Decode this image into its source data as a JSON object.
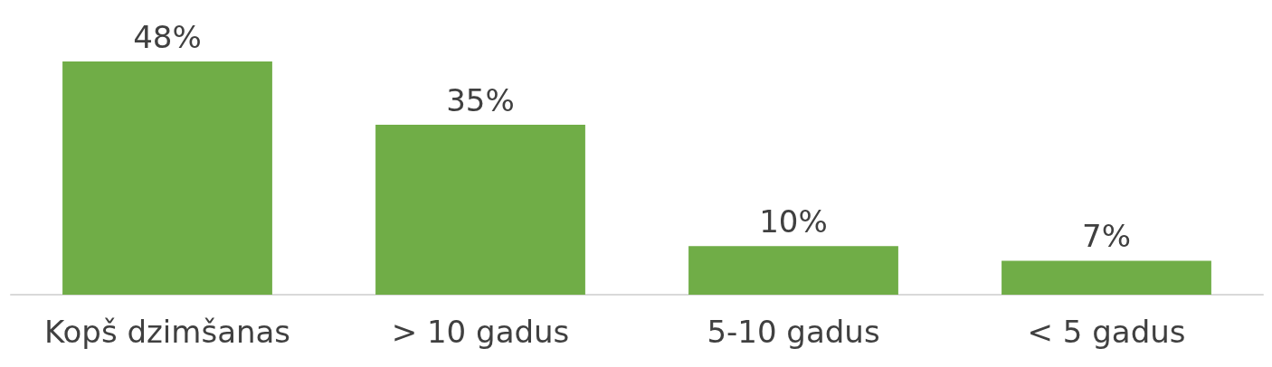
{
  "chart_data": {
    "type": "bar",
    "categories": [
      "Kopš dzimšanas",
      "> 10 gadus",
      "5-10 gadus",
      "< 5 gadus"
    ],
    "values": [
      48,
      35,
      10,
      7
    ],
    "color": "#70ad47",
    "value_labels": [
      "48%",
      "35%",
      "10%",
      "7%"
    ]
  }
}
